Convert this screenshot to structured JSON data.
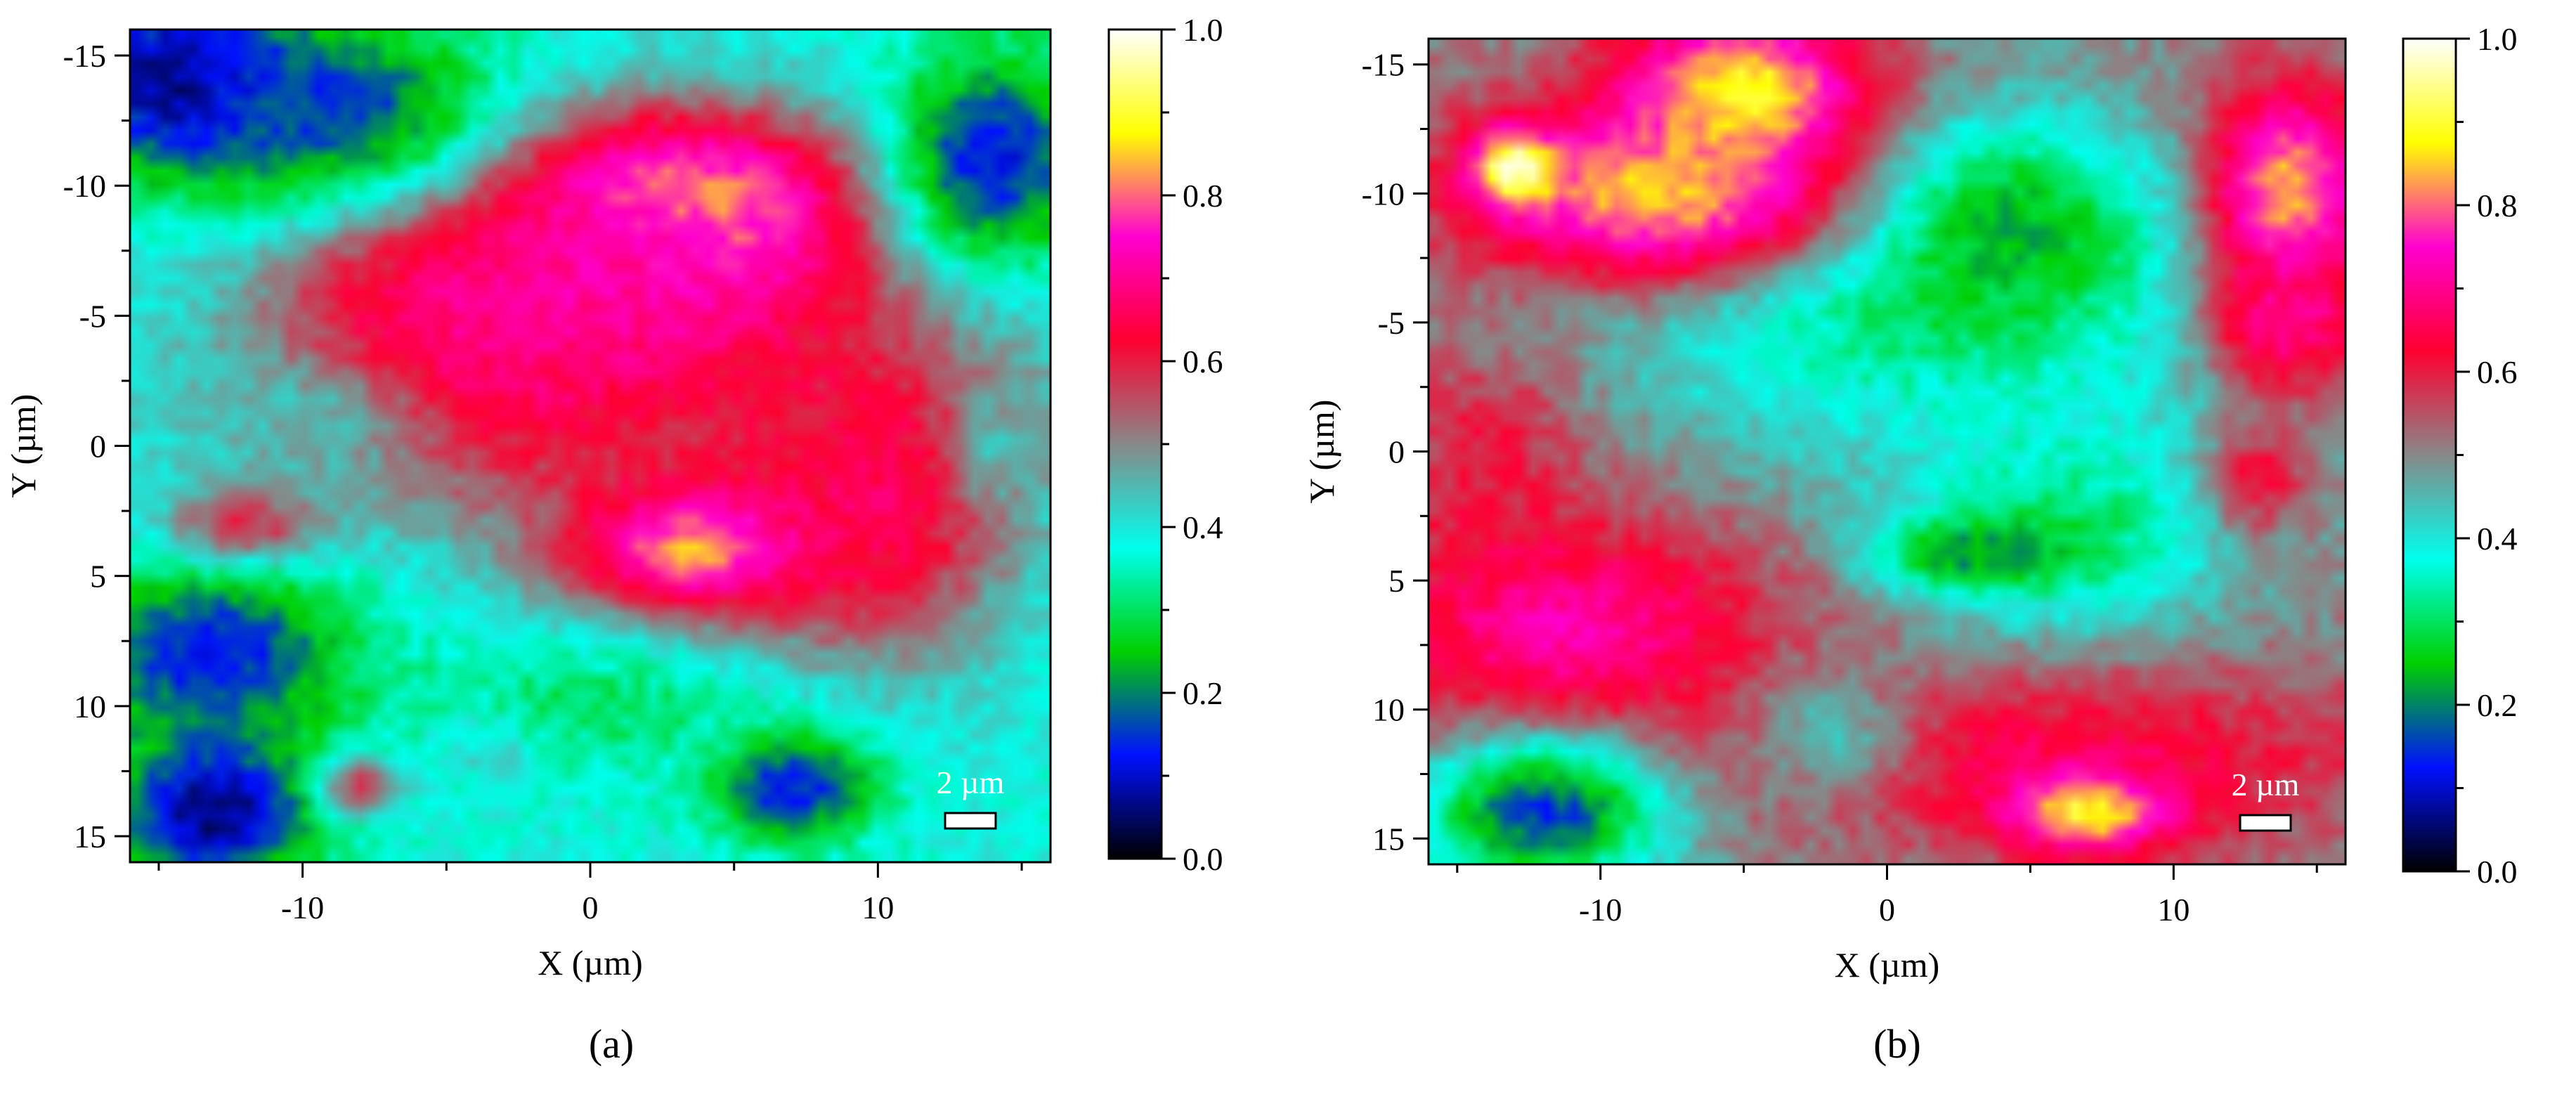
{
  "figure": {
    "panels": [
      {
        "label": "(a)",
        "scale_bar_label": "2 µm"
      },
      {
        "label": "(b)",
        "scale_bar_label": "2 µm"
      }
    ]
  },
  "chart_data": [
    {
      "type": "heatmap",
      "title": "",
      "xlabel": "X (µm)",
      "ylabel": "Y (µm)",
      "xlim": [
        -16,
        16
      ],
      "ylim": [
        -16,
        16
      ],
      "y_inverted": true,
      "x_ticks": [
        -10,
        0,
        10
      ],
      "y_ticks": [
        -15,
        -10,
        -5,
        0,
        5,
        10,
        15
      ],
      "colorbar": {
        "min": 0.0,
        "max": 1.0,
        "ticks": [
          "0.0",
          "0.2",
          "0.4",
          "0.6",
          "0.8",
          "1.0"
        ]
      },
      "colormap_stops": [
        "#000000",
        "#0010ff",
        "#00d000",
        "#00ffee",
        "#888888",
        "#ff0030",
        "#ff00d0",
        "#ffff00",
        "#ffffff"
      ],
      "legend": "colorbar-right",
      "grid": false,
      "background_level": 0.38,
      "features": [
        {
          "x": 2,
          "y": -3,
          "sx": 8,
          "sy": 4.5,
          "v": 0.62
        },
        {
          "x": 5,
          "y": 2,
          "sx": 4.5,
          "sy": 5,
          "v": 0.58
        },
        {
          "x": 3,
          "y": -9,
          "sx": 4.5,
          "sy": 2.5,
          "v": 0.92
        },
        {
          "x": 0,
          "y": -7,
          "sx": 5,
          "sy": 3,
          "v": 0.72
        },
        {
          "x": -5,
          "y": -4,
          "sx": 4,
          "sy": 3,
          "v": 0.7
        },
        {
          "x": 4,
          "y": 4,
          "sx": 3,
          "sy": 1.5,
          "v": 0.85
        },
        {
          "x": 10,
          "y": 2,
          "sx": 3,
          "sy": 4,
          "v": 0.66
        },
        {
          "x": -14,
          "y": -14,
          "sx": 3,
          "sy": 2.5,
          "v": 0.02
        },
        {
          "x": -9,
          "y": -13,
          "sx": 4,
          "sy": 2.5,
          "v": 0.15
        },
        {
          "x": 14,
          "y": -11,
          "sx": 2.5,
          "sy": 3,
          "v": 0.12
        },
        {
          "x": -13,
          "y": 8,
          "sx": 3.5,
          "sy": 2.5,
          "v": 0.12
        },
        {
          "x": -13,
          "y": 14,
          "sx": 2.5,
          "sy": 2,
          "v": 0.05
        },
        {
          "x": 7,
          "y": 13,
          "sx": 2,
          "sy": 1.5,
          "v": 0.1
        },
        {
          "x": -10,
          "y": -1,
          "sx": 3,
          "sy": 2,
          "v": 0.45
        },
        {
          "x": -12,
          "y": 3,
          "sx": 2,
          "sy": 1,
          "v": 0.58
        },
        {
          "x": -3,
          "y": 11,
          "sx": 1.5,
          "sy": 1,
          "v": 0.6
        },
        {
          "x": -8,
          "y": 13,
          "sx": 1,
          "sy": 0.8,
          "v": 0.6
        },
        {
          "x": 14,
          "y": 0,
          "sx": 1,
          "sy": 1.5,
          "v": 0.45
        },
        {
          "x": 0,
          "y": 10,
          "sx": 5,
          "sy": 2,
          "v": 0.3
        }
      ]
    },
    {
      "type": "heatmap",
      "title": "",
      "xlabel": "X (µm)",
      "ylabel": "Y (µm)",
      "xlim": [
        -16,
        16
      ],
      "ylim": [
        -16,
        16
      ],
      "y_inverted": true,
      "x_ticks": [
        -10,
        0,
        10
      ],
      "y_ticks": [
        -15,
        -10,
        -5,
        0,
        5,
        10,
        15
      ],
      "colorbar": {
        "min": 0.0,
        "max": 1.0,
        "ticks": [
          "0.0",
          "0.2",
          "0.4",
          "0.6",
          "0.8",
          "1.0"
        ]
      },
      "colormap_stops": [
        "#000000",
        "#0010ff",
        "#00d000",
        "#00ffee",
        "#888888",
        "#ff0030",
        "#ff00d0",
        "#ffff00",
        "#ffffff"
      ],
      "legend": "colorbar-right",
      "grid": false,
      "background_level": 0.5,
      "features": [
        {
          "x": 1,
          "y": -6,
          "sx": 8,
          "sy": 4,
          "v": 0.3
        },
        {
          "x": 3,
          "y": -9,
          "sx": 4,
          "sy": 2.5,
          "v": 0.2
        },
        {
          "x": 6,
          "y": 3,
          "sx": 4,
          "sy": 3,
          "v": 0.3
        },
        {
          "x": 3,
          "y": 4,
          "sx": 2.5,
          "sy": 1,
          "v": 0.2
        },
        {
          "x": -8,
          "y": -10,
          "sx": 5,
          "sy": 2.5,
          "v": 0.85
        },
        {
          "x": -13,
          "y": -11,
          "sx": 1,
          "sy": 1,
          "v": 1.0
        },
        {
          "x": -5,
          "y": -14,
          "sx": 3,
          "sy": 2,
          "v": 0.9
        },
        {
          "x": 14,
          "y": -10,
          "sx": 2,
          "sy": 3,
          "v": 0.85
        },
        {
          "x": 14,
          "y": -5,
          "sx": 2,
          "sy": 2,
          "v": 0.7
        },
        {
          "x": -14,
          "y": 0,
          "sx": 2.5,
          "sy": 3,
          "v": 0.6
        },
        {
          "x": -11,
          "y": 7,
          "sx": 5,
          "sy": 3,
          "v": 0.72
        },
        {
          "x": 6,
          "y": 12,
          "sx": 8,
          "sy": 2.5,
          "v": 0.65
        },
        {
          "x": 7,
          "y": 14,
          "sx": 2,
          "sy": 1,
          "v": 0.9
        },
        {
          "x": -12,
          "y": 14,
          "sx": 3,
          "sy": 2,
          "v": 0.15
        },
        {
          "x": -2,
          "y": 11,
          "sx": 2,
          "sy": 2,
          "v": 0.45
        },
        {
          "x": 13,
          "y": 1,
          "sx": 1.2,
          "sy": 1.5,
          "v": 0.62
        }
      ]
    }
  ]
}
